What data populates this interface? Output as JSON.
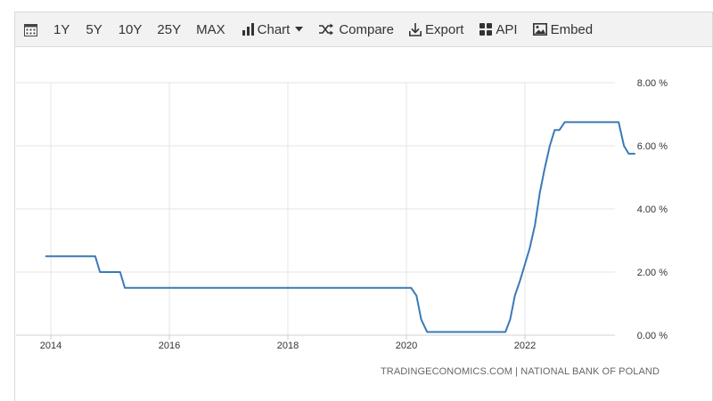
{
  "toolbar": {
    "items": [
      {
        "name": "calendar",
        "icon": "calendar-icon",
        "label": ""
      },
      {
        "name": "range-1y",
        "label": "1Y"
      },
      {
        "name": "range-5y",
        "label": "5Y"
      },
      {
        "name": "range-10y",
        "label": "10Y"
      },
      {
        "name": "range-25y",
        "label": "25Y"
      },
      {
        "name": "range-max",
        "label": "MAX"
      },
      {
        "name": "chart",
        "icon": "bar-chart-icon",
        "label": "Chart",
        "dropdown": true
      },
      {
        "name": "compare",
        "icon": "shuffle-icon",
        "label": "Compare"
      },
      {
        "name": "export",
        "icon": "download-icon",
        "label": "Export"
      },
      {
        "name": "api",
        "icon": "grid-icon",
        "label": "API"
      },
      {
        "name": "embed",
        "icon": "image-icon",
        "label": "Embed"
      }
    ]
  },
  "source_text": "TRADINGECONOMICS.COM  |  NATIONAL BANK OF POLAND",
  "colors": {
    "line": "#3a7ab7",
    "grid": "#e6e6e6",
    "toolbar_bg": "#f2f2f2"
  },
  "chart_data": {
    "type": "line",
    "title": "",
    "xlabel": "",
    "ylabel": "",
    "x_ticks": [
      "2014",
      "2016",
      "2018",
      "2020",
      "2022"
    ],
    "y_ticks": [
      "0.00 %",
      "2.00 %",
      "4.00 %",
      "6.00 %",
      "8.00 %"
    ],
    "xlim": [
      2014.0,
      2024.0
    ],
    "ylim": [
      0,
      8
    ],
    "grid": true,
    "series": [
      {
        "name": "",
        "x": [
          2013.92,
          2014.75,
          2014.83,
          2015.17,
          2015.25,
          2020.08,
          2020.17,
          2020.25,
          2020.35,
          2020.42,
          2021.67,
          2021.75,
          2021.83,
          2021.92,
          2022.0,
          2022.08,
          2022.17,
          2022.25,
          2022.33,
          2022.42,
          2022.5,
          2022.58,
          2022.67,
          2022.75,
          2023.58,
          2023.67,
          2023.75,
          2023.85
        ],
        "y": [
          2.5,
          2.5,
          2.0,
          2.0,
          1.5,
          1.5,
          1.25,
          0.5,
          0.1,
          0.1,
          0.1,
          0.5,
          1.25,
          1.75,
          2.25,
          2.75,
          3.5,
          4.5,
          5.25,
          6.0,
          6.5,
          6.5,
          6.75,
          6.75,
          6.75,
          6.0,
          5.75,
          5.75
        ]
      }
    ]
  }
}
